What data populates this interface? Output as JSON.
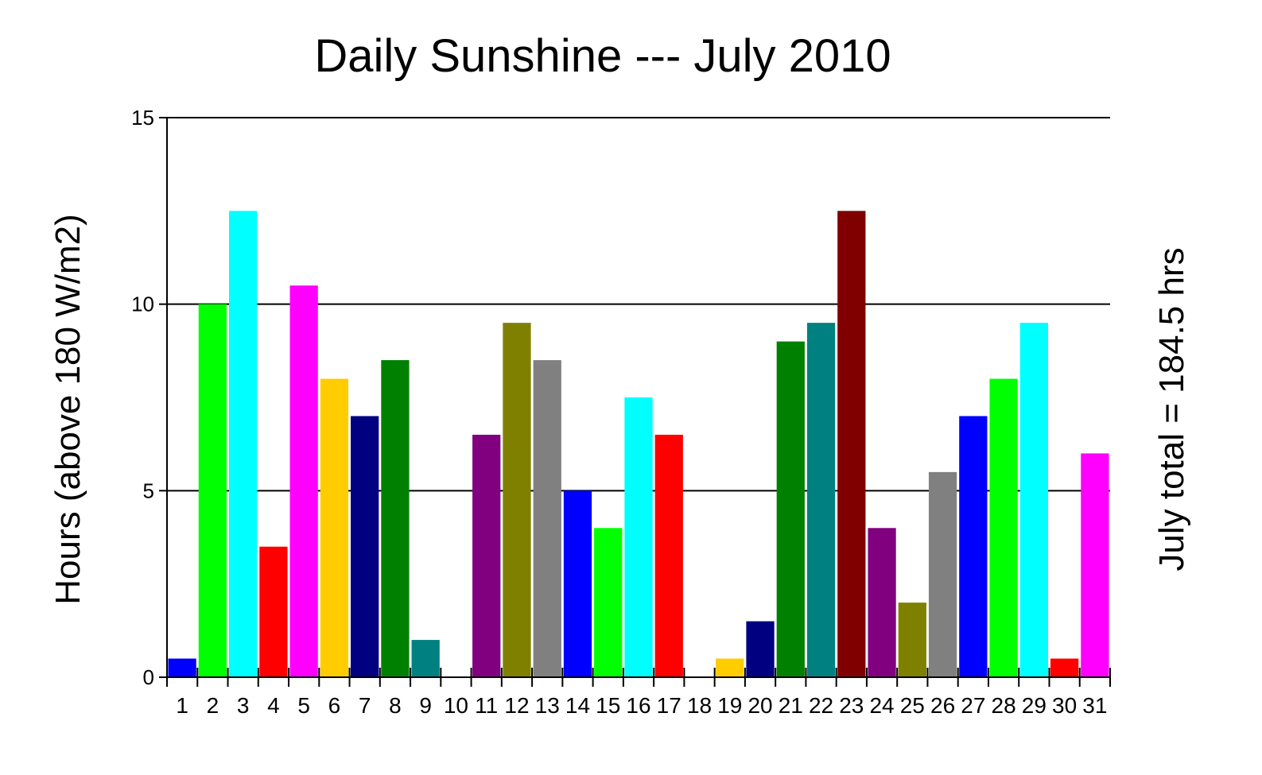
{
  "chart_data": {
    "type": "bar",
    "title": "Daily Sunshine --- July 2010",
    "ylabel": "Hours (above 180 W/m2)",
    "right_label": "July total = 184.5 hrs",
    "xlabel": "",
    "ylim": [
      0,
      15
    ],
    "yticks": [
      0,
      5,
      10,
      15
    ],
    "grid": "horizontal lines at 5, 10, 15",
    "legend": "none",
    "categories": [
      "1",
      "2",
      "3",
      "4",
      "5",
      "6",
      "7",
      "8",
      "9",
      "10",
      "11",
      "12",
      "13",
      "14",
      "15",
      "16",
      "17",
      "18",
      "19",
      "20",
      "21",
      "22",
      "23",
      "24",
      "25",
      "26",
      "27",
      "28",
      "29",
      "30",
      "31"
    ],
    "values": [
      0.5,
      10,
      12.5,
      3.5,
      10.5,
      8,
      7,
      8.5,
      1,
      0,
      6.5,
      9.5,
      8.5,
      5,
      4,
      7.5,
      6.5,
      0,
      0.5,
      1.5,
      9,
      9.5,
      12.5,
      4,
      2,
      5.5,
      7,
      8,
      9.5,
      0.5,
      6
    ],
    "colors": [
      "#0000ff",
      "#00ff00",
      "#00ffff",
      "#ff0000",
      "#ff00ff",
      "#ffcc00",
      "#000080",
      "#008000",
      "#008080",
      "#800000",
      "#800080",
      "#808000",
      "#808080",
      "#0000ff",
      "#00ff00",
      "#00ffff",
      "#ff0000",
      "#ff00ff",
      "#ffcc00",
      "#000080",
      "#008000",
      "#008080",
      "#800000",
      "#800080",
      "#808000",
      "#808080",
      "#0000ff",
      "#00ff00",
      "#00ffff",
      "#ff0000",
      "#ff00ff"
    ],
    "axis_color": "#000000",
    "background": "#ffffff"
  }
}
